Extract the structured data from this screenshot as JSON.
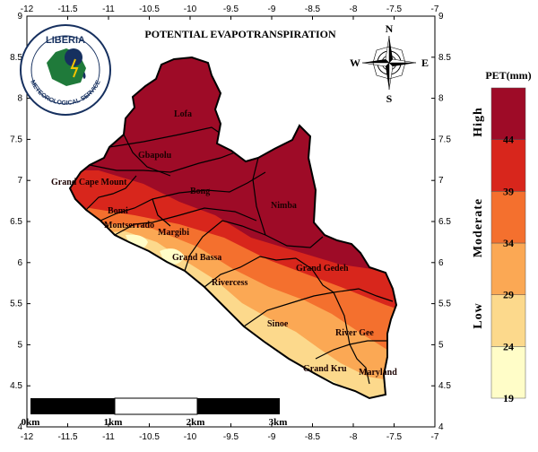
{
  "map": {
    "title": "POTENTIAL EVAPOTRANSPIRATION",
    "x_ticks": [
      "-12",
      "-11.5",
      "-11",
      "-10.5",
      "-10",
      "-9.5",
      "-9",
      "-8.5",
      "-8",
      "-7.5",
      "-7"
    ],
    "y_ticks_left": [
      "9",
      "8.5",
      "8",
      "7.5",
      "7",
      "6.5",
      "6",
      "5.5",
      "5",
      "4.5",
      "4"
    ],
    "y_ticks_right": [
      "9",
      "8.5",
      "8",
      "7.5",
      "7",
      "6.5",
      "6",
      "5.5",
      "5",
      "4.5",
      "4"
    ],
    "counties": [
      "Lofa",
      "Gbapolu",
      "Grand Cape Mount",
      "Bong",
      "Nimba",
      "Bomi",
      "Montserrado",
      "Margibi",
      "Grand Bassa",
      "Rivercess",
      "Grand Gedeh",
      "Sinoe",
      "River Gee",
      "Grand Kru",
      "Maryland"
    ]
  },
  "logo": {
    "org_line1": "LIBERIA",
    "org_line2": "METEOROLOGICAL SERVICE"
  },
  "compass": {
    "n": "N",
    "s": "S",
    "e": "E",
    "w": "W"
  },
  "scale_bar": {
    "labels": [
      "0km",
      "1km",
      "2km",
      "3km"
    ]
  },
  "legend": {
    "title": "PET(mm)",
    "breaks": [
      "44",
      "39",
      "34",
      "29",
      "24",
      "19"
    ],
    "classes": [
      "High",
      "Moderate",
      "Low"
    ],
    "colors": [
      "#fffdc8",
      "#fcd98c",
      "#fba854",
      "#f4702e",
      "#d8261c",
      "#9e0b27"
    ]
  }
}
